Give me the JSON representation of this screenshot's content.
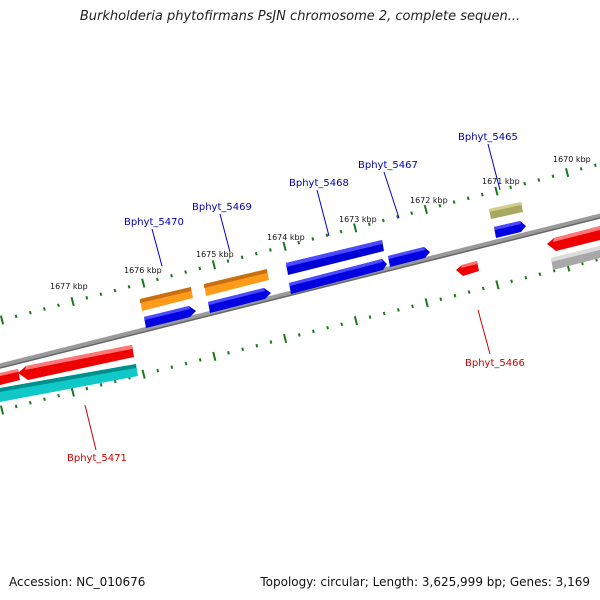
{
  "title": "Burkholderia phytofirmans PsJN chromosome 2, complete sequen...",
  "footer": {
    "accession": "Accession: NC_010676",
    "topology": "Topology: circular; Length: 3,625,999 bp; Genes: 3,169"
  },
  "colors": {
    "forward_label": "#0000b4",
    "reverse_label": "#cc0000",
    "blue_gene": "#0000e6",
    "orange_gene": "#ff9900",
    "red_gene": "#ee0000",
    "cyan_gene": "#00cccc",
    "olive_gene": "#aaaa55",
    "gray_gene": "#b0b0b0",
    "tick": "#1a7a1a",
    "backbone": "#808080"
  },
  "ticks": [
    {
      "label": "1677 kbp"
    },
    {
      "label": "1676 kbp"
    },
    {
      "label": "1675 kbp"
    },
    {
      "label": "1674 kbp"
    },
    {
      "label": "1673 kbp"
    },
    {
      "label": "1672 kbp"
    },
    {
      "label": "1671 kbp"
    },
    {
      "label": "1670 kbp"
    }
  ],
  "gene_labels": [
    {
      "text": "Bphyt_5465",
      "strand": "forward"
    },
    {
      "text": "Bphyt_5467",
      "strand": "forward"
    },
    {
      "text": "Bphyt_5468",
      "strand": "forward"
    },
    {
      "text": "Bphyt_5469",
      "strand": "forward"
    },
    {
      "text": "Bphyt_5470",
      "strand": "forward"
    },
    {
      "text": "Bphyt_5466",
      "strand": "reverse"
    },
    {
      "text": "Bphyt_5471",
      "strand": "reverse"
    }
  ],
  "genes": [
    {
      "id": "olive-gene",
      "color": "olive_gene"
    },
    {
      "id": "blue-gene-5465",
      "color": "blue_gene"
    },
    {
      "id": "blue-gene-5467",
      "color": "blue_gene"
    },
    {
      "id": "blue-gene-5468-top",
      "color": "blue_gene"
    },
    {
      "id": "blue-gene-5468-bottom",
      "color": "blue_gene"
    },
    {
      "id": "orange-gene-5469",
      "color": "orange_gene"
    },
    {
      "id": "blue-gene-5469",
      "color": "blue_gene"
    },
    {
      "id": "orange-gene-5470",
      "color": "orange_gene"
    },
    {
      "id": "blue-gene-5470",
      "color": "blue_gene"
    },
    {
      "id": "red-gene-5466",
      "color": "red_gene"
    },
    {
      "id": "red-gene-right",
      "color": "red_gene"
    },
    {
      "id": "gray-gene-right",
      "color": "gray_gene"
    },
    {
      "id": "red-gene-5471",
      "color": "red_gene"
    },
    {
      "id": "red-gene-left-edge",
      "color": "red_gene"
    },
    {
      "id": "cyan-gene-5471",
      "color": "cyan_gene"
    }
  ]
}
